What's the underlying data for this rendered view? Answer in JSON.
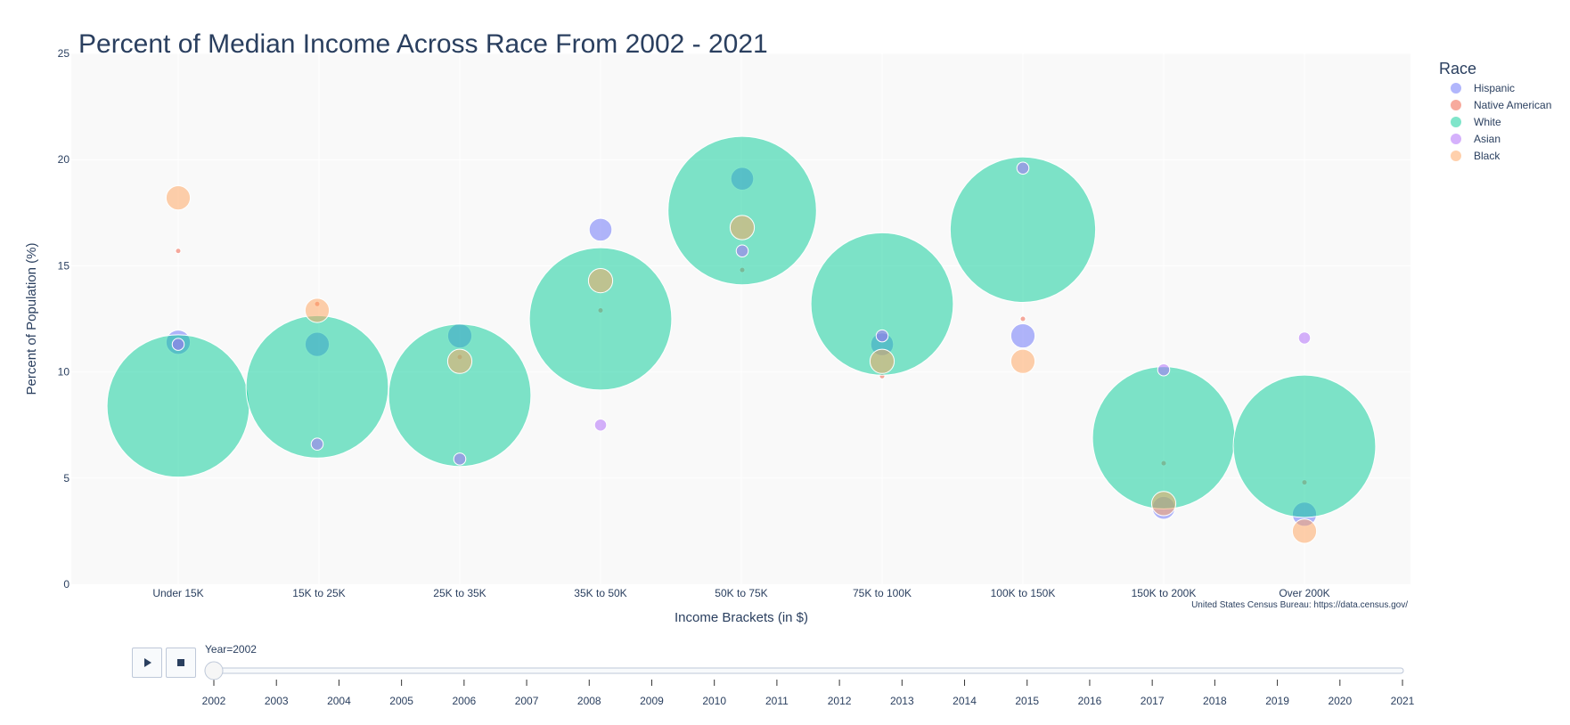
{
  "chart_data": {
    "type": "scatter",
    "title": "Percent of Median Income Across Race From 2002 - 2021",
    "xlabel": "Income Brackets (in $)",
    "ylabel": "Percent of Population (%)",
    "ylim": [
      0,
      25
    ],
    "yticks": [
      0,
      5,
      10,
      15,
      20,
      25
    ],
    "grid": true,
    "legend_title": "Race",
    "legend_position": "top-right",
    "source_annotation": "United States Census Bureau: https://data.census.gov/",
    "categories": [
      "Under 15K",
      "15K to 25K",
      "25K to 35K",
      "35K to 50K",
      "50K to 75K",
      "75K to 100K",
      "100K to 150K",
      "150K to 200K",
      "Over 200K"
    ],
    "series": [
      {
        "name": "Hispanic",
        "color": "#636efa",
        "values": [
          11.4,
          11.3,
          11.7,
          16.7,
          19.1,
          11.3,
          11.7,
          3.6,
          3.3
        ],
        "sizes": [
          17,
          17,
          17,
          16,
          16,
          16,
          17,
          16,
          17
        ]
      },
      {
        "name": "Native American",
        "color": "#ef553b",
        "values": [
          15.7,
          13.2,
          10.7,
          12.9,
          14.8,
          9.8,
          12.5,
          5.7,
          4.8
        ],
        "sizes": [
          4,
          4,
          4,
          4,
          4,
          4,
          4,
          4,
          4
        ]
      },
      {
        "name": "White",
        "color": "#00cc96",
        "values": [
          8.4,
          9.3,
          8.9,
          12.5,
          17.6,
          13.2,
          16.7,
          6.9,
          6.5
        ],
        "sizes": [
          47,
          47,
          47,
          47,
          49,
          47,
          48,
          47,
          47
        ]
      },
      {
        "name": "Asian",
        "color": "#ab63fa",
        "values": [
          11.3,
          6.6,
          5.9,
          7.5,
          15.7,
          11.7,
          19.6,
          10.1,
          11.6
        ],
        "sizes": [
          9,
          9,
          9,
          9,
          9,
          9,
          9,
          9,
          9
        ]
      },
      {
        "name": "Black",
        "color": "#ffa15a",
        "values": [
          18.2,
          12.9,
          10.5,
          14.3,
          16.8,
          10.5,
          10.5,
          3.8,
          2.5
        ],
        "sizes": [
          17,
          17,
          17,
          17,
          17,
          17,
          17,
          17,
          17
        ]
      }
    ],
    "x_offsets": [
      0,
      -2,
      0,
      0,
      1,
      0,
      0,
      0,
      0
    ]
  },
  "slider": {
    "current_label": "Year=2002",
    "current_index": 0,
    "years": [
      "2002",
      "2003",
      "2004",
      "2005",
      "2006",
      "2007",
      "2008",
      "2009",
      "2010",
      "2011",
      "2012",
      "2013",
      "2014",
      "2015",
      "2016",
      "2017",
      "2018",
      "2019",
      "2020",
      "2021"
    ]
  },
  "controls": {
    "play_icon": "play-icon",
    "stop_icon": "stop-icon"
  }
}
